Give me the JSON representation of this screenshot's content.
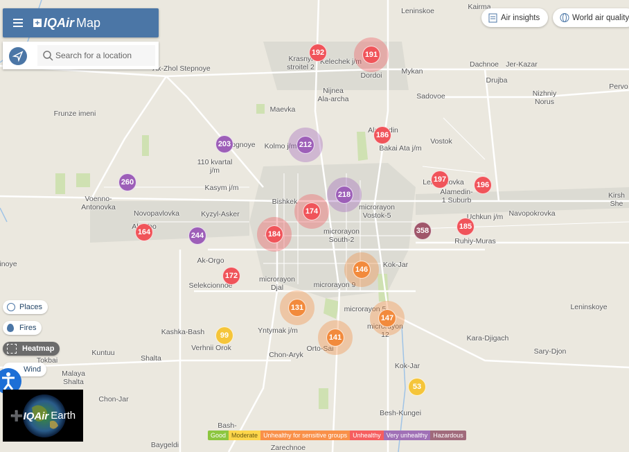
{
  "header": {
    "brand": "IQAir",
    "product": "Map"
  },
  "search": {
    "placeholder": "Search for a location"
  },
  "top_buttons": [
    "Air insights",
    "World air quality"
  ],
  "layers": [
    "Places",
    "Fires",
    "Heatmap",
    "Wind"
  ],
  "earth": {
    "brand": "IQAir",
    "product": "Earth"
  },
  "legend": [
    {
      "label": "Good",
      "color": "#8cc63f"
    },
    {
      "label": "Moderate",
      "color": "#fdd64b"
    },
    {
      "label": "Unhealthy for sensitive groups",
      "color": "#f99049"
    },
    {
      "label": "Unhealthy",
      "color": "#f65e5f"
    },
    {
      "label": "Very unhealthy",
      "color": "#a070b6"
    },
    {
      "label": "Hazardous",
      "color": "#a06a7b"
    }
  ],
  "stations": [
    {
      "aqi": 192,
      "color": "#f0545a"
    },
    {
      "aqi": 191,
      "color": "#f0545a"
    },
    {
      "aqi": 203,
      "color": "#9d5fb8"
    },
    {
      "aqi": 212,
      "color": "#9d5fb8"
    },
    {
      "aqi": 186,
      "color": "#f0545a"
    },
    {
      "aqi": 260,
      "color": "#9d5fb8"
    },
    {
      "aqi": 197,
      "color": "#f0545a"
    },
    {
      "aqi": 196,
      "color": "#f0545a"
    },
    {
      "aqi": 218,
      "color": "#9d5fb8"
    },
    {
      "aqi": 174,
      "color": "#f0545a"
    },
    {
      "aqi": 185,
      "color": "#f0545a"
    },
    {
      "aqi": 358,
      "color": "#a0566a"
    },
    {
      "aqi": 164,
      "color": "#f0545a"
    },
    {
      "aqi": 244,
      "color": "#9d5fb8"
    },
    {
      "aqi": 184,
      "color": "#f0545a"
    },
    {
      "aqi": 146,
      "color": "#f28a3c"
    },
    {
      "aqi": 172,
      "color": "#f0545a"
    },
    {
      "aqi": 131,
      "color": "#f28a3c"
    },
    {
      "aqi": 147,
      "color": "#f28a3c"
    },
    {
      "aqi": 99,
      "color": "#f5c53a"
    },
    {
      "aqi": 141,
      "color": "#f28a3c"
    },
    {
      "aqi": 53,
      "color": "#f5c53a"
    }
  ],
  "places": [
    "Leninskoe",
    "Kairma",
    "Krasnyi\nstroitel 2",
    "Kelechek j/m",
    "Dordoi",
    "Ak-Zhol Stepnoye",
    "Mykan",
    "Dachnoe",
    "Jer-Kazar",
    "Drujba",
    "Sadovoe",
    "Nijnea\nAla-archa",
    "Nizhniy\nNorus",
    "Pervo",
    "Frunze imeni",
    "Maevka",
    "Alamedin",
    "Bakai Ata j/m",
    "Vostok",
    "Kolmo j/m",
    "Prigognoye",
    "110 kvartal\nj/m",
    "Lebedinovka",
    "Alamedin-\n1 Suburb",
    "Kasym j/m",
    "Bishkek",
    "Voenno-\nAntonovka",
    "Novopavlovka",
    "Kyzyl-Asker",
    "microrayon\nVostok-5",
    "Navopokrovka",
    "Kirsh She",
    "Uchkun j/m",
    "Ala-Too",
    "microrayon\nSouth-2",
    "Ruhiy-Muras",
    "inoye",
    "Ak-Orgo",
    "Kok-Jar",
    "microrayon\nDjal",
    "microrayon 9",
    "Selekcionnoe",
    "Leninskoye",
    "microrayon 5",
    "Kashka-Bash",
    "Yntymak j/m",
    "microrayon\n12",
    "Kara-Djigach",
    "Verhnii Orok",
    "Orto-Sai",
    "Kuntuu",
    "Shalta",
    "Chon-Aryk",
    "Sary-Djon",
    "Tokbai",
    "Kok-Jar",
    "Malaya\nShalta",
    "Chon-Jar",
    "Besh-Kungei",
    "Bash-",
    "Baygeldi",
    "Zarechnoe"
  ]
}
